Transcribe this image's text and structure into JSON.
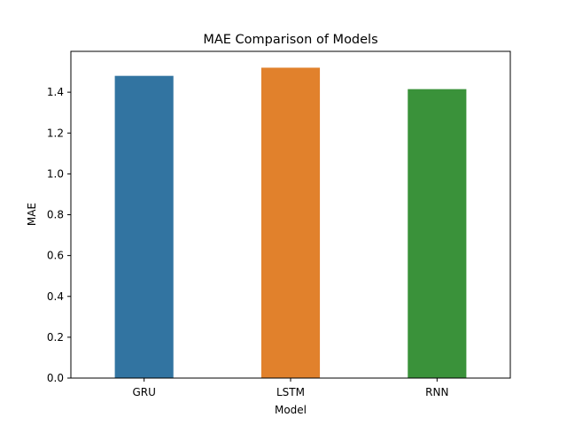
{
  "chart_data": {
    "type": "bar",
    "title": "MAE Comparison of Models",
    "xlabel": "Model",
    "ylabel": "MAE",
    "categories": [
      "GRU",
      "LSTM",
      "RNN"
    ],
    "values": [
      1.48,
      1.52,
      1.415
    ],
    "colors": [
      "#3274a1",
      "#e1812c",
      "#3a923a"
    ],
    "ylim": [
      0,
      1.6
    ],
    "yticks": [
      0.0,
      0.2,
      0.4,
      0.6,
      0.8,
      1.0,
      1.2,
      1.4
    ],
    "ytick_labels": [
      "0.0",
      "0.2",
      "0.4",
      "0.6",
      "0.8",
      "1.0",
      "1.2",
      "1.4"
    ],
    "grid": false,
    "legend": "none"
  }
}
